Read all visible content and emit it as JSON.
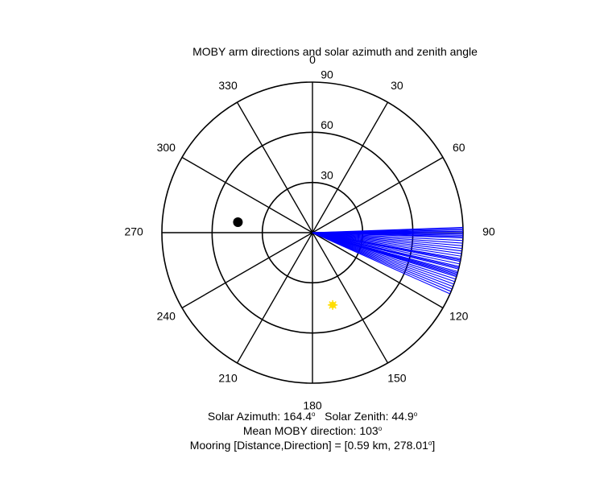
{
  "chart_data": {
    "type": "polar",
    "title": "MOBY arm directions and solar azimuth and zenith angle",
    "angle_ticks": [
      "0",
      "30",
      "60",
      "90",
      "120",
      "150",
      "180",
      "210",
      "240",
      "270",
      "300",
      "330"
    ],
    "angle_tick_values": [
      0,
      30,
      60,
      90,
      120,
      150,
      180,
      210,
      240,
      270,
      300,
      330
    ],
    "radial_ticks": [
      "30",
      "60",
      "90"
    ],
    "radial_tick_values": [
      30,
      60,
      90
    ],
    "r_max": 90,
    "arm_directions": {
      "color": "#0000ff",
      "radius": 90,
      "angles_deg": [
        88,
        88.5,
        89,
        89.5,
        90,
        90.5,
        91,
        91.5,
        92,
        93,
        94,
        95,
        96,
        97,
        98,
        99,
        100,
        100.5,
        101,
        102,
        103,
        103.5,
        104,
        105,
        105.5,
        106,
        106.5,
        107,
        108,
        109,
        110,
        111,
        112,
        113,
        114
      ]
    },
    "solar_position": {
      "azimuth": 164.4,
      "zenith": 44.9,
      "color": "#ffdd00"
    },
    "mooring_position": {
      "direction": 278.01,
      "distance_km": 0.59,
      "plot_radius": 45,
      "color": "#000000"
    }
  },
  "footer": {
    "solar_azimuth_label": "Solar Azimuth: 164.4",
    "solar_zenith_label": "Solar Zenith: 44.9",
    "mean_direction_label": "Mean MOBY direction: 103",
    "mooring_label": "Mooring [Distance,Direction] = [0.59 km, 278.01",
    "degree_symbol": "o",
    "close_bracket": "]"
  }
}
